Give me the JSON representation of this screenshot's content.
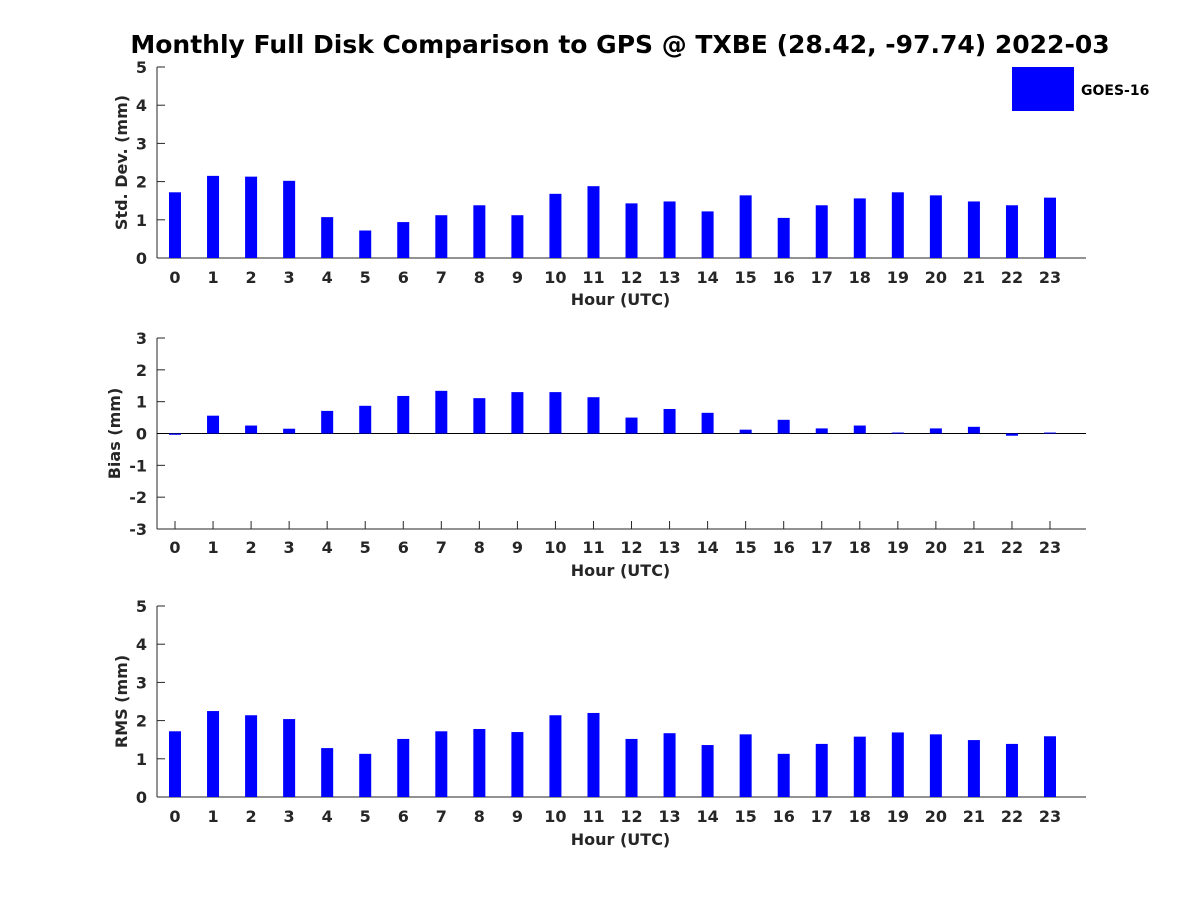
{
  "figure": {
    "title": "Monthly Full Disk Comparison to GPS @ TXBE (28.42, -97.74) 2022-03"
  },
  "legend": {
    "label": "GOES-16",
    "color": "#0000ff",
    "placement": "top-right"
  },
  "chart_data": [
    {
      "type": "bar",
      "title": "Monthly Full Disk Comparison to GPS @ TXBE (28.42, -97.74) 2022-03",
      "xlabel": "Hour (UTC)",
      "ylabel": "Std. Dev. (mm)",
      "ylim": [
        0,
        5
      ],
      "yticks": [
        0,
        1,
        2,
        3,
        4,
        5
      ],
      "categories": [
        "0",
        "1",
        "2",
        "3",
        "4",
        "5",
        "6",
        "7",
        "8",
        "9",
        "10",
        "11",
        "12",
        "13",
        "14",
        "15",
        "16",
        "17",
        "18",
        "19",
        "20",
        "21",
        "22",
        "23"
      ],
      "series": [
        {
          "name": "GOES-16",
          "color": "#0000ff",
          "values": [
            1.72,
            2.15,
            2.13,
            2.02,
            1.07,
            0.72,
            0.94,
            1.12,
            1.38,
            1.12,
            1.68,
            1.88,
            1.43,
            1.48,
            1.22,
            1.64,
            1.05,
            1.38,
            1.56,
            1.72,
            1.64,
            1.48,
            1.38,
            1.58
          ]
        }
      ]
    },
    {
      "type": "bar",
      "xlabel": "Hour (UTC)",
      "ylabel": "Bias (mm)",
      "ylim": [
        -3,
        3
      ],
      "yticks": [
        -3,
        -2,
        -1,
        0,
        1,
        2,
        3
      ],
      "zero_line": true,
      "categories": [
        "0",
        "1",
        "2",
        "3",
        "4",
        "5",
        "6",
        "7",
        "8",
        "9",
        "10",
        "11",
        "12",
        "13",
        "14",
        "15",
        "16",
        "17",
        "18",
        "19",
        "20",
        "21",
        "22",
        "23"
      ],
      "series": [
        {
          "name": "GOES-16",
          "color": "#0000ff",
          "values": [
            -0.04,
            0.56,
            0.25,
            0.15,
            0.71,
            0.87,
            1.18,
            1.34,
            1.11,
            1.3,
            1.3,
            1.14,
            0.5,
            0.77,
            0.65,
            0.12,
            0.43,
            0.16,
            0.25,
            0.03,
            0.16,
            0.21,
            -0.07,
            0.03
          ]
        }
      ]
    },
    {
      "type": "bar",
      "xlabel": "Hour (UTC)",
      "ylabel": "RMS (mm)",
      "ylim": [
        0,
        5
      ],
      "yticks": [
        0,
        1,
        2,
        3,
        4,
        5
      ],
      "categories": [
        "0",
        "1",
        "2",
        "3",
        "4",
        "5",
        "6",
        "7",
        "8",
        "9",
        "10",
        "11",
        "12",
        "13",
        "14",
        "15",
        "16",
        "17",
        "18",
        "19",
        "20",
        "21",
        "22",
        "23"
      ],
      "series": [
        {
          "name": "GOES-16",
          "color": "#0000ff",
          "values": [
            1.72,
            2.25,
            2.14,
            2.04,
            1.28,
            1.13,
            1.52,
            1.72,
            1.78,
            1.7,
            2.14,
            2.2,
            1.52,
            1.67,
            1.36,
            1.64,
            1.13,
            1.39,
            1.58,
            1.69,
            1.64,
            1.49,
            1.39,
            1.59
          ]
        }
      ]
    }
  ]
}
